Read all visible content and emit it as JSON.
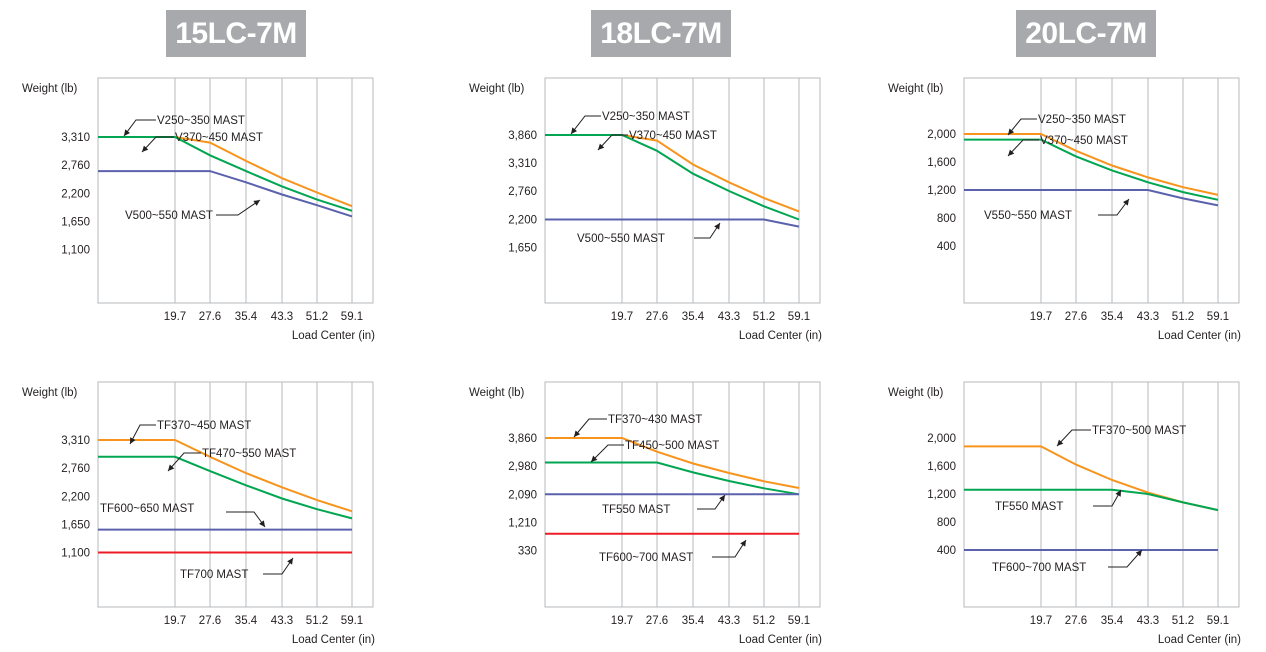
{
  "columns": [
    {
      "title": "15LC-7M"
    },
    {
      "title": "18LC-7M"
    },
    {
      "title": "20LC-7M"
    }
  ],
  "colors": {
    "orange": "#f7941d",
    "green": "#00a651",
    "blue": "#5b62ad",
    "red": "#ed1c24",
    "grid": "#b7b9bb",
    "title_bg": "#a7a9ac"
  },
  "chart_data": [
    {
      "type": "line",
      "model": "15LC-7M",
      "ylabel": "Weight (lb)",
      "xlabel": "Load Center (in)",
      "x_ticks": [
        "19.7",
        "27.6",
        "35.4",
        "43.3",
        "51.2",
        "59.1"
      ],
      "y_ticks": [
        3310,
        2760,
        2200,
        1650,
        1100
      ],
      "y_tick_labels": [
        "3,310",
        "2,760",
        "2,200",
        "1,650",
        "1,100"
      ],
      "series": [
        {
          "name": "V250~350 MAST",
          "color": "#f7941d",
          "x": [
            0,
            19.7,
            27.6,
            35.4,
            43.3,
            51.2,
            59.1
          ],
          "y": [
            3310,
            3310,
            3200,
            2840,
            2500,
            2220,
            1950
          ]
        },
        {
          "name": "V370~450 MAST",
          "color": "#00a651",
          "x": [
            0,
            19.7,
            27.6,
            35.4,
            43.3,
            51.2,
            59.1
          ],
          "y": [
            3310,
            3310,
            2950,
            2640,
            2340,
            2080,
            1860
          ]
        },
        {
          "name": "V500~550 MAST",
          "color": "#5b62ad",
          "x": [
            0,
            19.7,
            27.6,
            35.4,
            43.3,
            51.2,
            59.1
          ],
          "y": [
            2640,
            2640,
            2640,
            2420,
            2180,
            1970,
            1750
          ]
        }
      ]
    },
    {
      "type": "line",
      "model": "18LC-7M",
      "ylabel": "Weight (lb)",
      "xlabel": "Load Center (in)",
      "x_ticks": [
        "19.7",
        "27.6",
        "35.4",
        "43.3",
        "51.2",
        "59.1"
      ],
      "y_ticks": [
        3860,
        3310,
        2760,
        2200,
        1650
      ],
      "y_tick_labels": [
        "3,860",
        "3,310",
        "2,760",
        "2,200",
        "1,650"
      ],
      "series": [
        {
          "name": "V250~350 MAST",
          "color": "#f7941d",
          "x": [
            0,
            19.7,
            27.6,
            35.4,
            43.3,
            51.2,
            59.1
          ],
          "y": [
            3860,
            3860,
            3750,
            3280,
            2930,
            2620,
            2360
          ]
        },
        {
          "name": "V370~450 MAST",
          "color": "#00a651",
          "x": [
            0,
            19.7,
            27.6,
            35.4,
            43.3,
            51.2,
            59.1
          ],
          "y": [
            3860,
            3860,
            3550,
            3100,
            2760,
            2460,
            2200
          ]
        },
        {
          "name": "V500~550 MAST",
          "color": "#5b62ad",
          "x": [
            0,
            19.7,
            27.6,
            35.4,
            43.3,
            51.2,
            59.1
          ],
          "y": [
            2200,
            2200,
            2200,
            2200,
            2200,
            2200,
            2060
          ]
        }
      ]
    },
    {
      "type": "line",
      "model": "20LC-7M",
      "ylabel": "Weight (lb)",
      "xlabel": "Load Center (in)",
      "x_ticks": [
        "19.7",
        "27.6",
        "35.4",
        "43.3",
        "51.2",
        "59.1"
      ],
      "y_ticks": [
        2000,
        1600,
        1200,
        800,
        400
      ],
      "y_tick_labels": [
        "2,000",
        "1,600",
        "1,200",
        "800",
        "400"
      ],
      "series": [
        {
          "name": "V250~350 MAST",
          "color": "#f7941d",
          "x": [
            0,
            19.7,
            27.6,
            35.4,
            43.3,
            51.2,
            59.1
          ],
          "y": [
            2000,
            2000,
            1760,
            1550,
            1380,
            1240,
            1130
          ]
        },
        {
          "name": "V370~450 MAST",
          "color": "#00a651",
          "x": [
            0,
            19.7,
            27.6,
            35.4,
            43.3,
            51.2,
            59.1
          ],
          "y": [
            1920,
            1920,
            1680,
            1480,
            1310,
            1170,
            1060
          ]
        },
        {
          "name": "V550~550 MAST",
          "color": "#5b62ad",
          "x": [
            0,
            19.7,
            27.6,
            35.4,
            43.3,
            51.2,
            59.1
          ],
          "y": [
            1200,
            1200,
            1200,
            1200,
            1200,
            1080,
            980
          ]
        }
      ]
    },
    {
      "type": "line",
      "model": "15LC-7M",
      "ylabel": "Weight (lb)",
      "xlabel": "Load Center (in)",
      "x_ticks": [
        "19.7",
        "27.6",
        "35.4",
        "43.3",
        "51.2",
        "59.1"
      ],
      "y_ticks": [
        3310,
        2760,
        2200,
        1650,
        1100
      ],
      "y_tick_labels": [
        "3,310",
        "2,760",
        "2,200",
        "1,650",
        "1,100"
      ],
      "series": [
        {
          "name": "TF370~450 MAST",
          "color": "#f7941d",
          "x": [
            0,
            19.7,
            27.6,
            35.4,
            43.3,
            51.2,
            59.1
          ],
          "y": [
            3310,
            3310,
            2980,
            2660,
            2380,
            2130,
            1910
          ]
        },
        {
          "name": "TF470~550 MAST",
          "color": "#00a651",
          "x": [
            0,
            19.7,
            27.6,
            35.4,
            43.3,
            51.2,
            59.1
          ],
          "y": [
            2980,
            2980,
            2700,
            2420,
            2160,
            1950,
            1770
          ]
        },
        {
          "name": "TF600~650 MAST",
          "color": "#5b62ad",
          "x": [
            0,
            59.1
          ],
          "y": [
            1550,
            1550
          ]
        },
        {
          "name": "TF700 MAST",
          "color": "#ed1c24",
          "x": [
            0,
            59.1
          ],
          "y": [
            1100,
            1100
          ]
        }
      ]
    },
    {
      "type": "line",
      "model": "18LC-7M",
      "ylabel": "Weight (lb)",
      "xlabel": "Load Center (in)",
      "x_ticks": [
        "19.7",
        "27.6",
        "35.4",
        "43.3",
        "51.2",
        "59.1"
      ],
      "y_ticks": [
        3860,
        2980,
        2090,
        1210,
        330
      ],
      "y_tick_labels": [
        "3,860",
        "2,980",
        "2,090",
        "1,210",
        "330"
      ],
      "series": [
        {
          "name": "TF370~430 MAST",
          "color": "#f7941d",
          "x": [
            0,
            19.7,
            27.6,
            35.4,
            43.3,
            51.2,
            59.1
          ],
          "y": [
            3860,
            3860,
            3430,
            3060,
            2760,
            2500,
            2290
          ]
        },
        {
          "name": "TF450~500 MAST",
          "color": "#00a651",
          "x": [
            0,
            19.7,
            27.6,
            35.4,
            43.3,
            51.2,
            59.1
          ],
          "y": [
            3090,
            3090,
            3090,
            2780,
            2510,
            2280,
            2090
          ]
        },
        {
          "name": "TF550 MAST",
          "color": "#5b62ad",
          "x": [
            0,
            59.1
          ],
          "y": [
            2090,
            2090
          ]
        },
        {
          "name": "TF600~700 MAST",
          "color": "#ed1c24",
          "x": [
            0,
            59.1
          ],
          "y": [
            850,
            850
          ]
        }
      ]
    },
    {
      "type": "line",
      "model": "20LC-7M",
      "ylabel": "Weight (lb)",
      "xlabel": "Load Center (in)",
      "x_ticks": [
        "19.7",
        "27.6",
        "35.4",
        "43.3",
        "51.2",
        "59.1"
      ],
      "y_ticks": [
        2000,
        1600,
        1200,
        800,
        400
      ],
      "y_tick_labels": [
        "2,000",
        "1,600",
        "1,200",
        "800",
        "400"
      ],
      "series": [
        {
          "name": "TF370~500 MAST",
          "color": "#f7941d",
          "x": [
            0,
            19.7,
            27.6,
            35.4,
            43.3,
            51.2,
            59.1
          ],
          "y": [
            1880,
            1880,
            1620,
            1400,
            1220,
            1080,
            970
          ]
        },
        {
          "name": "TF550 MAST",
          "color": "#00a651",
          "x": [
            0,
            19.7,
            27.6,
            35.4,
            43.3,
            51.2,
            59.1
          ],
          "y": [
            1260,
            1260,
            1260,
            1260,
            1200,
            1080,
            970
          ]
        },
        {
          "name": "TF600~700 MAST",
          "color": "#5b62ad",
          "x": [
            0,
            59.1
          ],
          "y": [
            400,
            400
          ]
        }
      ]
    }
  ]
}
